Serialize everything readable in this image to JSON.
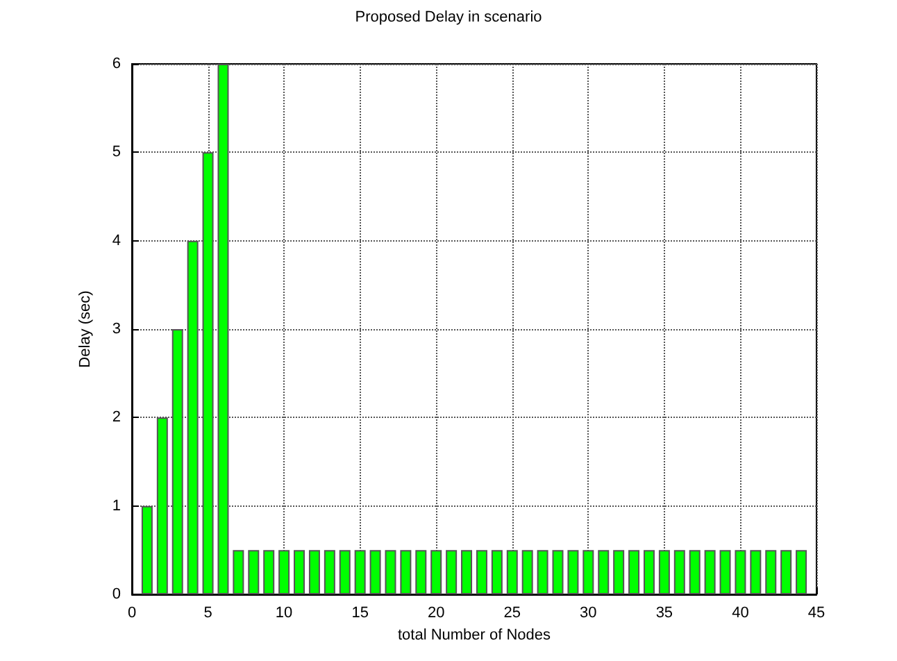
{
  "chart_data": {
    "type": "bar",
    "title": "Proposed Delay in scenario",
    "xlabel": "total Number of Nodes",
    "ylabel": "Delay (sec)",
    "x": [
      1,
      2,
      3,
      4,
      5,
      6,
      7,
      8,
      9,
      10,
      11,
      12,
      13,
      14,
      15,
      16,
      17,
      18,
      19,
      20,
      21,
      22,
      23,
      24,
      25,
      26,
      27,
      28,
      29,
      30,
      31,
      32,
      33,
      34,
      35,
      36,
      37,
      38,
      39,
      40,
      41,
      42,
      43,
      44
    ],
    "values": [
      1,
      2,
      3,
      4,
      5,
      6,
      0.5,
      0.5,
      0.5,
      0.5,
      0.5,
      0.5,
      0.5,
      0.5,
      0.5,
      0.5,
      0.5,
      0.5,
      0.5,
      0.5,
      0.5,
      0.5,
      0.5,
      0.5,
      0.5,
      0.5,
      0.5,
      0.5,
      0.5,
      0.5,
      0.5,
      0.5,
      0.5,
      0.5,
      0.5,
      0.5,
      0.5,
      0.5,
      0.5,
      0.5,
      0.5,
      0.5,
      0.5,
      0.5
    ],
    "color": "#00ff00",
    "xlim": [
      0,
      45
    ],
    "xticks": [
      0,
      5,
      10,
      15,
      20,
      25,
      30,
      35,
      40,
      45
    ],
    "ylim": [
      0,
      6
    ],
    "yticks": [
      0,
      1,
      2,
      3,
      4,
      5,
      6
    ],
    "grid": true
  }
}
